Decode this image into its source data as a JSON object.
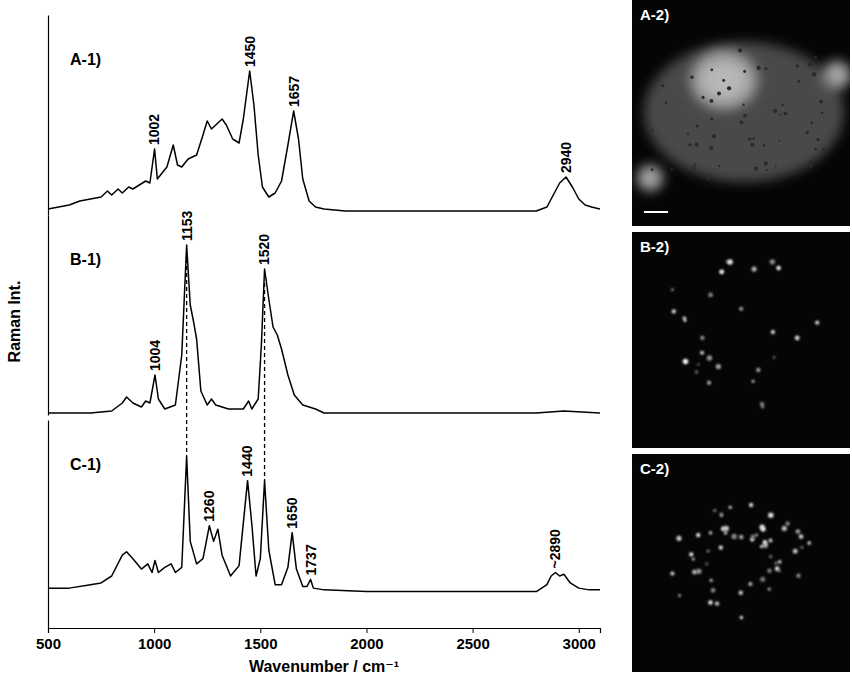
{
  "chart_data": [
    {
      "type": "line",
      "title": "A-1)",
      "color": "#000000",
      "grid": false,
      "tick_labels": false,
      "xlim": [
        500,
        3100
      ],
      "ylim": [
        0,
        100
      ],
      "x": [
        500,
        550,
        600,
        650,
        700,
        750,
        780,
        800,
        830,
        850,
        880,
        900,
        930,
        960,
        980,
        1002,
        1015,
        1030,
        1060,
        1090,
        1110,
        1130,
        1160,
        1200,
        1230,
        1250,
        1270,
        1300,
        1320,
        1340,
        1370,
        1400,
        1420,
        1450,
        1470,
        1490,
        1510,
        1540,
        1570,
        1600,
        1630,
        1657,
        1680,
        1700,
        1730,
        1760,
        1800,
        1900,
        2000,
        2500,
        2800,
        2850,
        2880,
        2910,
        2940,
        2970,
        3000,
        3030,
        3060,
        3100
      ],
      "values": [
        3,
        4,
        5,
        7,
        8,
        9,
        12,
        10,
        13,
        11,
        14,
        13,
        15,
        17,
        16,
        33,
        18,
        20,
        24,
        35,
        25,
        24,
        28,
        30,
        40,
        47,
        43,
        46,
        48,
        45,
        38,
        36,
        48,
        72,
        55,
        30,
        14,
        9,
        11,
        17,
        35,
        52,
        38,
        18,
        7,
        4,
        3,
        2,
        2,
        2,
        2,
        4,
        10,
        16,
        19,
        14,
        8,
        5,
        4,
        3
      ],
      "annotations": [
        {
          "x": 1002,
          "y": 33,
          "text": "1002"
        },
        {
          "x": 1450,
          "y": 72,
          "text": "1450"
        },
        {
          "x": 1657,
          "y": 52,
          "text": "1657"
        },
        {
          "x": 2940,
          "y": 19,
          "text": "2940"
        }
      ]
    },
    {
      "type": "line",
      "title": "B-1)",
      "color": "#000000",
      "grid": false,
      "tick_labels": false,
      "y_label": "Raman Int.",
      "xlim": [
        500,
        3100
      ],
      "ylim": [
        0,
        100
      ],
      "x": [
        500,
        700,
        800,
        850,
        870,
        900,
        940,
        960,
        980,
        1004,
        1020,
        1050,
        1100,
        1130,
        1153,
        1170,
        1185,
        1200,
        1220,
        1250,
        1270,
        1290,
        1350,
        1420,
        1445,
        1460,
        1490,
        1505,
        1520,
        1540,
        1560,
        1580,
        1600,
        1630,
        1660,
        1700,
        1760,
        1800,
        2000,
        2800,
        2930,
        3100
      ],
      "values": [
        1,
        1,
        2,
        6,
        9,
        6,
        4,
        7,
        6,
        20,
        8,
        3,
        5,
        30,
        85,
        55,
        47,
        38,
        12,
        5,
        8,
        5,
        3,
        3,
        7,
        3,
        8,
        35,
        73,
        58,
        44,
        40,
        33,
        20,
        10,
        5,
        3,
        1,
        1,
        1,
        2,
        1
      ],
      "annotations": [
        {
          "x": 1004,
          "y": 20,
          "text": "1004"
        },
        {
          "x": 1153,
          "y": 85,
          "text": "1153"
        },
        {
          "x": 1520,
          "y": 73,
          "text": "1520"
        }
      ]
    },
    {
      "type": "line",
      "title": "C-1)",
      "color": "#000000",
      "grid": false,
      "tick_labels": "x",
      "x_label": "Wavenumber / cm⁻¹",
      "xlim": [
        500,
        3100
      ],
      "ylim": [
        -20,
        100
      ],
      "xticks": [
        500,
        1000,
        1500,
        2000,
        2500,
        3000
      ],
      "x": [
        500,
        600,
        700,
        750,
        800,
        850,
        870,
        900,
        940,
        970,
        990,
        1004,
        1020,
        1050,
        1080,
        1100,
        1130,
        1153,
        1170,
        1200,
        1230,
        1260,
        1280,
        1300,
        1320,
        1360,
        1400,
        1440,
        1460,
        1480,
        1500,
        1520,
        1540,
        1570,
        1600,
        1630,
        1650,
        1670,
        1700,
        1720,
        1737,
        1750,
        1800,
        2000,
        2800,
        2850,
        2870,
        2890,
        2910,
        2930,
        2960,
        3000,
        3050,
        3100
      ],
      "values": [
        3,
        3,
        5,
        6,
        10,
        22,
        24,
        20,
        14,
        17,
        12,
        19,
        12,
        15,
        17,
        12,
        15,
        79,
        30,
        17,
        20,
        39,
        30,
        37,
        22,
        10,
        16,
        65,
        40,
        10,
        20,
        65,
        25,
        5,
        5,
        15,
        35,
        14,
        4,
        4,
        8,
        3,
        2,
        1,
        1,
        5,
        10,
        12,
        10,
        11,
        6,
        3,
        2,
        2
      ],
      "annotations": [
        {
          "x": 1260,
          "y": 39,
          "text": "1260"
        },
        {
          "x": 1440,
          "y": 65,
          "text": "1440"
        },
        {
          "x": 1650,
          "y": 35,
          "text": "1650"
        },
        {
          "x": 1737,
          "y": 8,
          "text": "1737"
        },
        {
          "x": 2890,
          "y": 12,
          "text": "~2890"
        }
      ],
      "reference_lines": [
        1153,
        1520
      ]
    }
  ],
  "image_panels": [
    {
      "label": "A-2)"
    },
    {
      "label": "B-2)"
    },
    {
      "label": "C-2)"
    }
  ]
}
